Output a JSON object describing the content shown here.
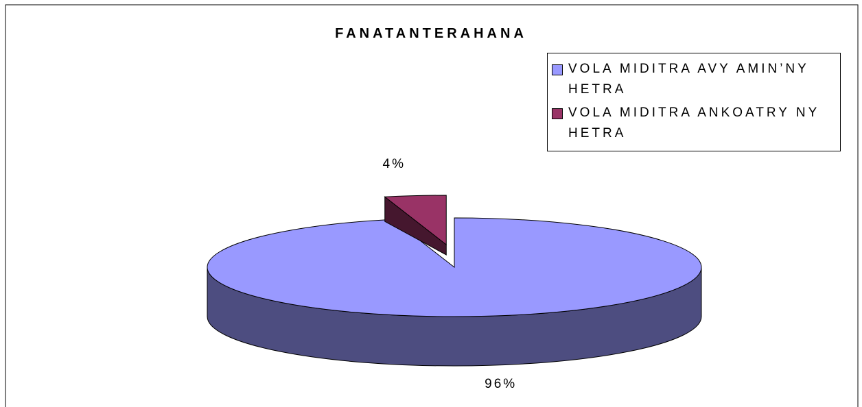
{
  "chart_data": {
    "type": "pie",
    "title": "FANATANTERAHANA",
    "categories": [
      "VOLA MIDITRA AVY AMIN’NY HETRA",
      "VOLA MIDITRA ANKOATRY NY HETRA"
    ],
    "values": [
      96,
      4
    ],
    "value_labels": [
      "96%",
      "4%"
    ],
    "colors": [
      "#9999ff",
      "#993366"
    ],
    "legend": "top-right"
  }
}
